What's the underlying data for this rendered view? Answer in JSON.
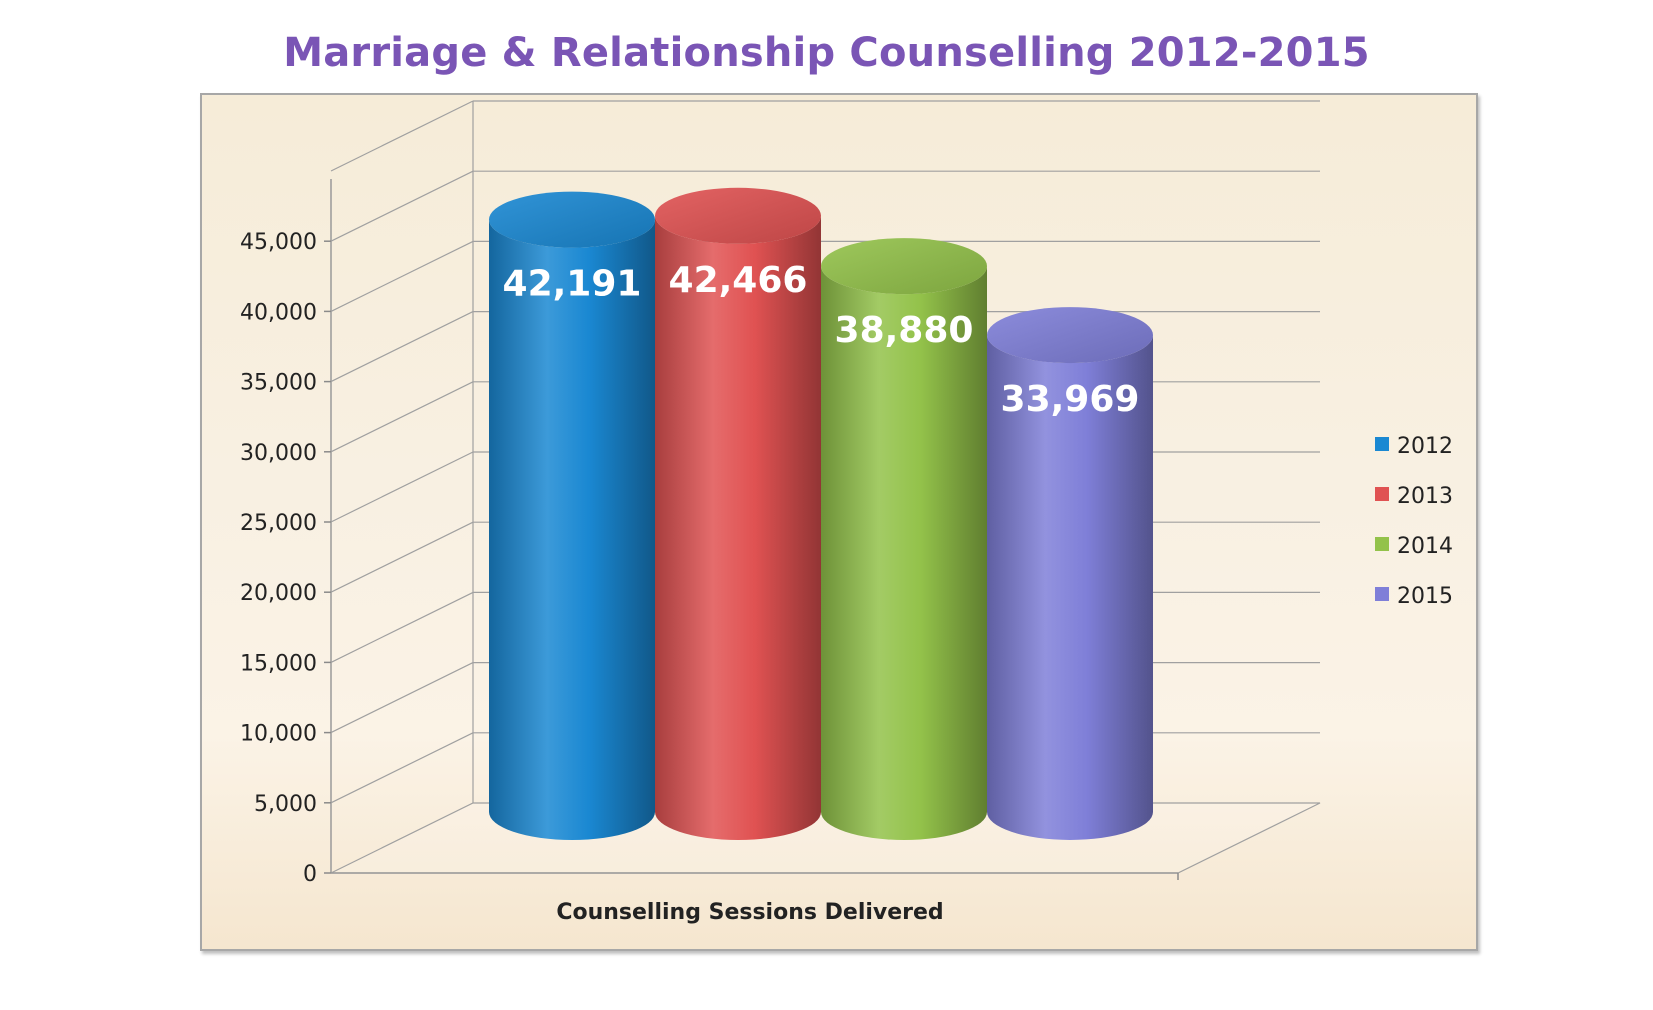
{
  "chart_data": {
    "type": "bar",
    "title": "Marriage & Relationship Counselling 2012-2015",
    "xlabel": "Counselling Sessions Delivered",
    "ylabel": "",
    "categories": [
      "Counselling Sessions Delivered"
    ],
    "series": [
      {
        "name": "2012",
        "values": [
          42191
        ],
        "label": "42,191",
        "color": "#1a88d2"
      },
      {
        "name": "2013",
        "values": [
          42466
        ],
        "label": "42,466",
        "color": "#e05252"
      },
      {
        "name": "2014",
        "values": [
          38880
        ],
        "label": "38,880",
        "color": "#93c24a"
      },
      {
        "name": "2015",
        "values": [
          33969
        ],
        "label": "33,969",
        "color": "#7f7fd8"
      }
    ],
    "ylim": [
      0,
      50000
    ],
    "yticks": [
      0,
      5000,
      10000,
      15000,
      20000,
      25000,
      30000,
      35000,
      40000,
      45000
    ],
    "ytick_labels": [
      "0",
      "5,000",
      "10,000",
      "15,000",
      "20,000",
      "25,000",
      "30,000",
      "35,000",
      "40,000",
      "45,000"
    ],
    "style": "3d-cylinder",
    "grid": true,
    "legend_position": "right"
  }
}
